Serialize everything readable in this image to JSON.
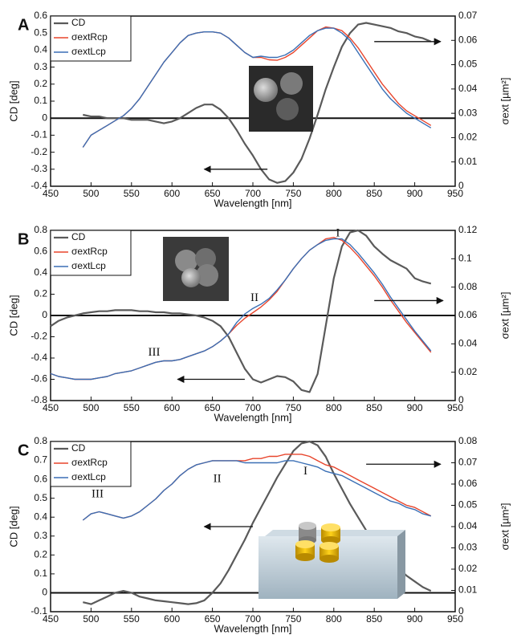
{
  "chart_data": [
    {
      "type": "line",
      "panel_label": "A",
      "xlabel": "Wavelength [nm]",
      "ylabel": "CD [deg]",
      "y2label": "σext [µm²]",
      "xlim": [
        450,
        950
      ],
      "xticks": [
        450,
        500,
        550,
        600,
        650,
        700,
        750,
        800,
        850,
        900,
        950
      ],
      "ylim": [
        -0.4,
        0.6
      ],
      "yticks": [
        -0.4,
        -0.3,
        -0.2,
        -0.1,
        0,
        0.1,
        0.2,
        0.3,
        0.4,
        0.5,
        0.6
      ],
      "y2lim": [
        0,
        0.07
      ],
      "y2ticks": [
        0,
        0.01,
        0.02,
        0.03,
        0.04,
        0.05,
        0.06,
        0.07
      ],
      "x": [
        490,
        500,
        510,
        520,
        530,
        540,
        550,
        560,
        570,
        580,
        590,
        600,
        610,
        620,
        630,
        640,
        650,
        660,
        670,
        680,
        690,
        700,
        710,
        720,
        730,
        740,
        750,
        760,
        770,
        780,
        790,
        800,
        810,
        820,
        830,
        840,
        850,
        860,
        870,
        880,
        890,
        900,
        910,
        920
      ],
      "series": [
        {
          "name": "CD",
          "color": "#5a5a5a",
          "values": [
            0.02,
            0.01,
            0.01,
            0.0,
            0.0,
            0.0,
            -0.01,
            -0.01,
            -0.01,
            -0.02,
            -0.03,
            -0.02,
            0.0,
            0.03,
            0.06,
            0.08,
            0.08,
            0.05,
            0.0,
            -0.07,
            -0.15,
            -0.22,
            -0.3,
            -0.36,
            -0.38,
            -0.37,
            -0.32,
            -0.24,
            -0.12,
            0.02,
            0.17,
            0.3,
            0.42,
            0.5,
            0.55,
            0.56,
            0.55,
            0.54,
            0.53,
            0.51,
            0.5,
            0.48,
            0.47,
            0.45
          ]
        },
        {
          "name": "σextRcp",
          "color": "#e8452c",
          "axis": "y2",
          "values": [
            0.016,
            0.021,
            0.023,
            0.025,
            0.027,
            0.029,
            0.032,
            0.036,
            0.041,
            0.046,
            0.051,
            0.055,
            0.059,
            0.062,
            0.063,
            0.0635,
            0.0635,
            0.063,
            0.061,
            0.058,
            0.055,
            0.053,
            0.053,
            0.052,
            0.0518,
            0.053,
            0.055,
            0.058,
            0.061,
            0.064,
            0.0655,
            0.065,
            0.064,
            0.061,
            0.057,
            0.052,
            0.047,
            0.042,
            0.038,
            0.034,
            0.031,
            0.029,
            0.027,
            0.025
          ]
        },
        {
          "name": "σextLcp",
          "color": "#3a6fb5",
          "axis": "y2",
          "values": [
            0.016,
            0.021,
            0.023,
            0.025,
            0.027,
            0.029,
            0.032,
            0.036,
            0.041,
            0.046,
            0.051,
            0.055,
            0.059,
            0.062,
            0.063,
            0.0635,
            0.0635,
            0.063,
            0.061,
            0.058,
            0.055,
            0.053,
            0.0535,
            0.053,
            0.053,
            0.054,
            0.056,
            0.059,
            0.062,
            0.064,
            0.065,
            0.065,
            0.063,
            0.06,
            0.055,
            0.05,
            0.045,
            0.04,
            0.036,
            0.033,
            0.03,
            0.028,
            0.026,
            0.024
          ]
        }
      ]
    },
    {
      "type": "line",
      "panel_label": "B",
      "xlabel": "Wavelength [nm]",
      "ylabel": "CD [deg]",
      "y2label": "σext [µm²]",
      "xlim": [
        450,
        950
      ],
      "xticks": [
        450,
        500,
        550,
        600,
        650,
        700,
        750,
        800,
        850,
        900,
        950
      ],
      "ylim": [
        -0.8,
        0.8
      ],
      "yticks": [
        -0.8,
        -0.6,
        -0.4,
        -0.2,
        0,
        0.2,
        0.4,
        0.6,
        0.8
      ],
      "y2lim": [
        0,
        0.12
      ],
      "y2ticks": [
        0,
        0.02,
        0.04,
        0.06,
        0.08,
        0.1,
        0.12
      ],
      "annotations": [
        "I",
        "II",
        "III"
      ],
      "x": [
        450,
        460,
        470,
        480,
        490,
        500,
        510,
        520,
        530,
        540,
        550,
        560,
        570,
        580,
        590,
        600,
        610,
        620,
        630,
        640,
        650,
        660,
        670,
        680,
        690,
        700,
        710,
        720,
        730,
        740,
        750,
        760,
        770,
        780,
        790,
        800,
        810,
        820,
        830,
        840,
        850,
        860,
        870,
        880,
        890,
        900,
        910,
        920
      ],
      "series": [
        {
          "name": "CD",
          "color": "#5a5a5a",
          "values": [
            -0.1,
            -0.05,
            -0.02,
            0.0,
            0.02,
            0.03,
            0.04,
            0.04,
            0.05,
            0.05,
            0.05,
            0.04,
            0.04,
            0.03,
            0.03,
            0.02,
            0.02,
            0.01,
            0.0,
            -0.02,
            -0.05,
            -0.1,
            -0.2,
            -0.35,
            -0.5,
            -0.6,
            -0.63,
            -0.6,
            -0.57,
            -0.58,
            -0.62,
            -0.7,
            -0.72,
            -0.55,
            -0.1,
            0.35,
            0.65,
            0.78,
            0.8,
            0.75,
            0.65,
            0.58,
            0.52,
            0.48,
            0.44,
            0.35,
            0.32,
            0.3
          ]
        },
        {
          "name": "σextRcp",
          "color": "#e8452c",
          "axis": "y2",
          "values": [
            0.019,
            0.017,
            0.016,
            0.015,
            0.015,
            0.015,
            0.016,
            0.017,
            0.019,
            0.02,
            0.021,
            0.023,
            0.025,
            0.027,
            0.028,
            0.028,
            0.029,
            0.031,
            0.033,
            0.035,
            0.038,
            0.042,
            0.047,
            0.053,
            0.058,
            0.062,
            0.066,
            0.071,
            0.077,
            0.085,
            0.093,
            0.1,
            0.106,
            0.11,
            0.114,
            0.115,
            0.113,
            0.108,
            0.102,
            0.095,
            0.088,
            0.08,
            0.071,
            0.063,
            0.055,
            0.048,
            0.041,
            0.034
          ]
        },
        {
          "name": "σextLcp",
          "color": "#3a6fb5",
          "axis": "y2",
          "values": [
            0.019,
            0.017,
            0.016,
            0.015,
            0.015,
            0.015,
            0.016,
            0.017,
            0.019,
            0.02,
            0.021,
            0.023,
            0.025,
            0.027,
            0.028,
            0.028,
            0.029,
            0.031,
            0.033,
            0.035,
            0.038,
            0.042,
            0.047,
            0.055,
            0.061,
            0.065,
            0.068,
            0.072,
            0.078,
            0.085,
            0.093,
            0.1,
            0.106,
            0.11,
            0.113,
            0.114,
            0.114,
            0.11,
            0.104,
            0.097,
            0.09,
            0.082,
            0.073,
            0.065,
            0.057,
            0.049,
            0.042,
            0.035
          ]
        }
      ]
    },
    {
      "type": "line",
      "panel_label": "C",
      "xlabel": "Wavelength [nm]",
      "ylabel": "CD [deg]",
      "y2label": "σext [µm²]",
      "xlim": [
        450,
        950
      ],
      "xticks": [
        450,
        500,
        550,
        600,
        650,
        700,
        750,
        800,
        850,
        900,
        950
      ],
      "ylim": [
        -0.1,
        0.8
      ],
      "yticks": [
        -0.1,
        0,
        0.1,
        0.2,
        0.3,
        0.4,
        0.5,
        0.6,
        0.7,
        0.8
      ],
      "y2lim": [
        0,
        0.08
      ],
      "y2ticks": [
        0,
        0.01,
        0.02,
        0.03,
        0.04,
        0.05,
        0.06,
        0.07,
        0.08
      ],
      "annotations": [
        "I",
        "II",
        "III"
      ],
      "x": [
        490,
        500,
        510,
        520,
        530,
        540,
        550,
        560,
        570,
        580,
        590,
        600,
        610,
        620,
        630,
        640,
        650,
        660,
        670,
        680,
        690,
        700,
        710,
        720,
        730,
        740,
        750,
        760,
        770,
        780,
        790,
        800,
        810,
        820,
        830,
        840,
        850,
        860,
        870,
        880,
        890,
        900,
        910,
        920
      ],
      "series": [
        {
          "name": "CD",
          "color": "#5a5a5a",
          "values": [
            -0.05,
            -0.06,
            -0.04,
            -0.02,
            0.0,
            0.01,
            0.0,
            -0.02,
            -0.03,
            -0.04,
            -0.045,
            -0.05,
            -0.055,
            -0.06,
            -0.055,
            -0.04,
            0.0,
            0.05,
            0.12,
            0.2,
            0.28,
            0.37,
            0.45,
            0.53,
            0.61,
            0.68,
            0.75,
            0.79,
            0.8,
            0.78,
            0.72,
            0.63,
            0.55,
            0.47,
            0.4,
            0.33,
            0.27,
            0.22,
            0.17,
            0.13,
            0.09,
            0.06,
            0.03,
            0.01
          ]
        },
        {
          "name": "σextRcp",
          "color": "#e8452c",
          "axis": "y2",
          "values": [
            0.043,
            0.046,
            0.047,
            0.046,
            0.045,
            0.044,
            0.045,
            0.047,
            0.05,
            0.053,
            0.057,
            0.06,
            0.064,
            0.067,
            0.069,
            0.07,
            0.071,
            0.071,
            0.071,
            0.071,
            0.071,
            0.072,
            0.072,
            0.073,
            0.073,
            0.074,
            0.074,
            0.074,
            0.073,
            0.071,
            0.069,
            0.068,
            0.066,
            0.064,
            0.062,
            0.06,
            0.058,
            0.056,
            0.054,
            0.052,
            0.05,
            0.049,
            0.047,
            0.045
          ]
        },
        {
          "name": "σextLcp",
          "color": "#3a6fb5",
          "axis": "y2",
          "values": [
            0.043,
            0.046,
            0.047,
            0.046,
            0.045,
            0.044,
            0.045,
            0.047,
            0.05,
            0.053,
            0.057,
            0.06,
            0.064,
            0.067,
            0.069,
            0.07,
            0.071,
            0.071,
            0.071,
            0.071,
            0.07,
            0.07,
            0.07,
            0.07,
            0.07,
            0.071,
            0.071,
            0.07,
            0.069,
            0.068,
            0.066,
            0.065,
            0.064,
            0.062,
            0.06,
            0.058,
            0.056,
            0.054,
            0.052,
            0.051,
            0.049,
            0.048,
            0.046,
            0.045
          ]
        }
      ]
    }
  ]
}
